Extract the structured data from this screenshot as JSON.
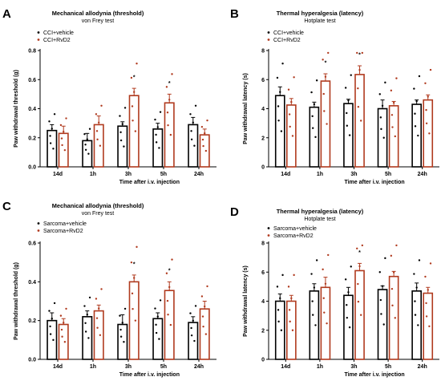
{
  "colors": {
    "vehicle": "#000000",
    "rvd2": "#b03a1e"
  },
  "chart_data": [
    {
      "type": "bar",
      "panel": "A",
      "title": "Mechanical allodynia (threshold)",
      "subtitle": "von Frey test",
      "xlabel": "Time after i.v. injection",
      "ylabel": "Paw withdrawal threshold (g)",
      "ylim": [
        0,
        0.8
      ],
      "yticks": [
        "0.0",
        "0.2",
        "0.4",
        "0.6",
        "0.8"
      ],
      "categories": [
        "14d",
        "1h",
        "3h",
        "5h",
        "24h"
      ],
      "legend_position": "top-left",
      "series": [
        {
          "name": "CCI+vehicle",
          "values": [
            0.25,
            0.18,
            0.28,
            0.26,
            0.29
          ],
          "errors": [
            0.04,
            0.05,
            0.03,
            0.04,
            0.05
          ]
        },
        {
          "name": "CCI+RvD2",
          "values": [
            0.23,
            0.29,
            0.49,
            0.44,
            0.22
          ],
          "errors": [
            0.05,
            0.06,
            0.05,
            0.06,
            0.04
          ]
        }
      ],
      "significance": [
        {
          "series": 1,
          "category": 2,
          "label": "*"
        },
        {
          "series": 1,
          "category": 3,
          "label": "*"
        }
      ]
    },
    {
      "type": "bar",
      "panel": "B",
      "title": "Thermal hyperalgesia (latency)",
      "subtitle": "Hotplate test",
      "xlabel": "Time after i.v. injection",
      "ylabel": "Paw withdrawal latency (s)",
      "ylim": [
        0,
        8
      ],
      "yticks": [
        "0",
        "2",
        "4",
        "6",
        "8"
      ],
      "categories": [
        "14d",
        "1h",
        "3h",
        "5h",
        "24h"
      ],
      "legend_position": "top-left",
      "series": [
        {
          "name": "CCI+vehicle",
          "values": [
            4.9,
            4.1,
            4.35,
            4.0,
            4.3
          ],
          "errors": [
            0.6,
            0.35,
            0.3,
            0.6,
            0.3
          ]
        },
        {
          "name": "CCI+RvD2",
          "values": [
            4.25,
            5.9,
            6.35,
            4.2,
            4.6
          ],
          "errors": [
            0.45,
            0.5,
            0.6,
            0.3,
            0.35
          ]
        }
      ],
      "significance": [
        {
          "series": 1,
          "category": 1,
          "label": "*"
        },
        {
          "series": 1,
          "category": 2,
          "label": "*"
        }
      ]
    },
    {
      "type": "bar",
      "panel": "C",
      "title": "Mechanical allodynia (threshold)",
      "subtitle": "von Frey test",
      "xlabel": "Time after i.v. injection",
      "ylabel": "Paw withdrawal threshold (g)",
      "ylim": [
        0,
        0.6
      ],
      "yticks": [
        "0.0",
        "0.2",
        "0.4",
        "0.6"
      ],
      "categories": [
        "14d",
        "1h",
        "3h",
        "5h",
        "24h"
      ],
      "legend_position": "top-left",
      "series": [
        {
          "name": "Sarcoma+vehicle",
          "values": [
            0.2,
            0.22,
            0.18,
            0.21,
            0.19
          ],
          "errors": [
            0.04,
            0.03,
            0.05,
            0.03,
            0.03
          ]
        },
        {
          "name": "Sarcoma+RvD2",
          "values": [
            0.18,
            0.25,
            0.4,
            0.355,
            0.26
          ],
          "errors": [
            0.03,
            0.03,
            0.035,
            0.045,
            0.04
          ]
        }
      ],
      "significance": [
        {
          "series": 1,
          "category": 2,
          "label": "*"
        },
        {
          "series": 1,
          "category": 3,
          "label": "*"
        }
      ]
    },
    {
      "type": "bar",
      "panel": "D",
      "title": "Thermal hyperalgesia (latency)",
      "subtitle": "Hotplate test",
      "xlabel": "Time after i.v. injection",
      "ylabel": "Paw withdrawal latency (s)",
      "ylim": [
        0,
        8
      ],
      "yticks": [
        "0",
        "2",
        "4",
        "6",
        "8"
      ],
      "categories": [
        "14d",
        "1h",
        "3h",
        "5h",
        "24h"
      ],
      "legend_position": "top-left",
      "series": [
        {
          "name": "Sarcoma+vehicle",
          "values": [
            4.0,
            4.7,
            4.4,
            4.8,
            4.7
          ],
          "errors": [
            0.5,
            0.5,
            0.55,
            0.25,
            0.55
          ]
        },
        {
          "name": "Sarcoma+RvD2",
          "values": [
            4.0,
            4.95,
            6.1,
            5.7,
            4.55
          ],
          "errors": [
            0.4,
            0.7,
            0.5,
            0.35,
            0.4
          ]
        }
      ],
      "significance": [
        {
          "series": 1,
          "category": 2,
          "label": "*"
        }
      ]
    }
  ]
}
